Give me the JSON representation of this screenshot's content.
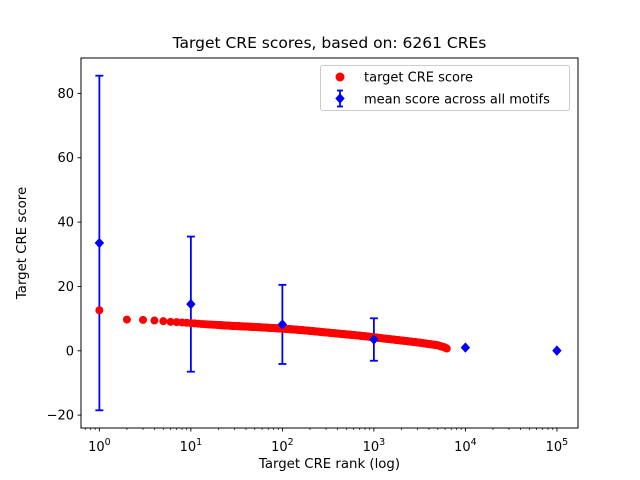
{
  "figure": {
    "background": "#ffffff",
    "title": "Target CRE scores, based on: 6261 CREs"
  },
  "chart_data": {
    "type": "scatter",
    "title": "Target CRE scores, based on: 6261 CREs",
    "xlabel": "Target CRE rank (log)",
    "ylabel": "Target CRE score",
    "xscale": "log",
    "xlim": [
      0.63,
      170000
    ],
    "ylim": [
      -24,
      91
    ],
    "grid": false,
    "legend_position": "upper right",
    "yticks": {
      "values": [
        -20,
        0,
        20,
        40,
        60,
        80
      ],
      "labels": [
        "−20",
        "0",
        "20",
        "40",
        "60",
        "80"
      ]
    },
    "xticks": {
      "base": "10",
      "exponents": [
        "0",
        "1",
        "2",
        "3",
        "4",
        "5"
      ],
      "values": [
        1,
        10,
        100,
        1000,
        10000,
        100000
      ]
    },
    "series": [
      {
        "name": "target CRE score",
        "color": "#ff0000",
        "marker": "circle",
        "n_points": 6261,
        "trend_points": [
          [
            1,
            12.6
          ],
          [
            2,
            9.7
          ],
          [
            3,
            9.6
          ],
          [
            4,
            9.4
          ],
          [
            5,
            9.2
          ],
          [
            6,
            9.0
          ],
          [
            8,
            8.8
          ],
          [
            10,
            8.6
          ],
          [
            15,
            8.2
          ],
          [
            20,
            8.0
          ],
          [
            30,
            7.7
          ],
          [
            50,
            7.4
          ],
          [
            70,
            7.15
          ],
          [
            100,
            6.9
          ],
          [
            150,
            6.5
          ],
          [
            200,
            6.2
          ],
          [
            300,
            5.7
          ],
          [
            500,
            5.1
          ],
          [
            700,
            4.7
          ],
          [
            1000,
            4.2
          ],
          [
            1500,
            3.6
          ],
          [
            2000,
            3.2
          ],
          [
            3000,
            2.6
          ],
          [
            4000,
            2.1
          ],
          [
            5000,
            1.7
          ],
          [
            6000,
            1.0
          ],
          [
            6261,
            0.7
          ]
        ]
      },
      {
        "name": "mean score across all motifs",
        "color": "#0000ff",
        "marker": "diamond",
        "points": [
          {
            "x": 1,
            "y": 33.5,
            "err": 52.0
          },
          {
            "x": 10,
            "y": 14.5,
            "err": 21.0
          },
          {
            "x": 100,
            "y": 8.2,
            "err": 12.3
          },
          {
            "x": 1000,
            "y": 3.5,
            "err": 6.6
          },
          {
            "x": 10000,
            "y": 1.0,
            "err": 0
          },
          {
            "x": 100000,
            "y": 0.05,
            "err": 0
          }
        ]
      }
    ]
  }
}
